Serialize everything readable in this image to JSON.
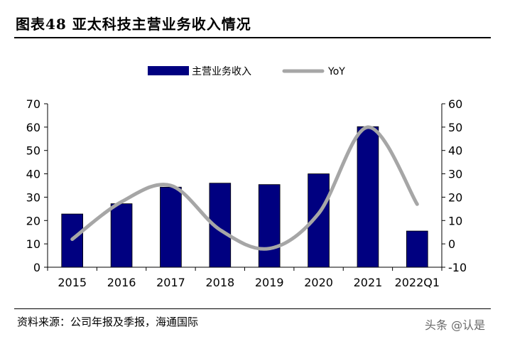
{
  "header": {
    "title": "图表48  亚太科技主营业务收入情况"
  },
  "footer": {
    "source": "资料来源：公司年报及季报，海通国际",
    "watermark": "头条 @认是"
  },
  "chart_data": {
    "type": "bar",
    "categories": [
      "2015",
      "2016",
      "2017",
      "2018",
      "2019",
      "2020",
      "2021",
      "2022Q1"
    ],
    "series": [
      {
        "name": "主营业务收入",
        "type": "bar",
        "axis": "left",
        "color": "#000080",
        "values": [
          22.8,
          27.2,
          34.3,
          36.0,
          35.4,
          40.0,
          60.2,
          15.5
        ]
      },
      {
        "name": "YoY",
        "type": "line",
        "smooth": true,
        "axis": "right",
        "color": "#a6a6a6",
        "values": [
          2,
          18,
          25,
          6,
          -2,
          13,
          50,
          17
        ]
      }
    ],
    "y_left": {
      "min": 0,
      "max": 70,
      "ticks": [
        0,
        10,
        20,
        30,
        40,
        50,
        60,
        70
      ]
    },
    "y_right": {
      "min": -10,
      "max": 60,
      "ticks": [
        -10,
        0,
        10,
        20,
        30,
        40,
        50,
        60
      ]
    },
    "legend": {
      "position": "top-center"
    },
    "grid": false
  }
}
